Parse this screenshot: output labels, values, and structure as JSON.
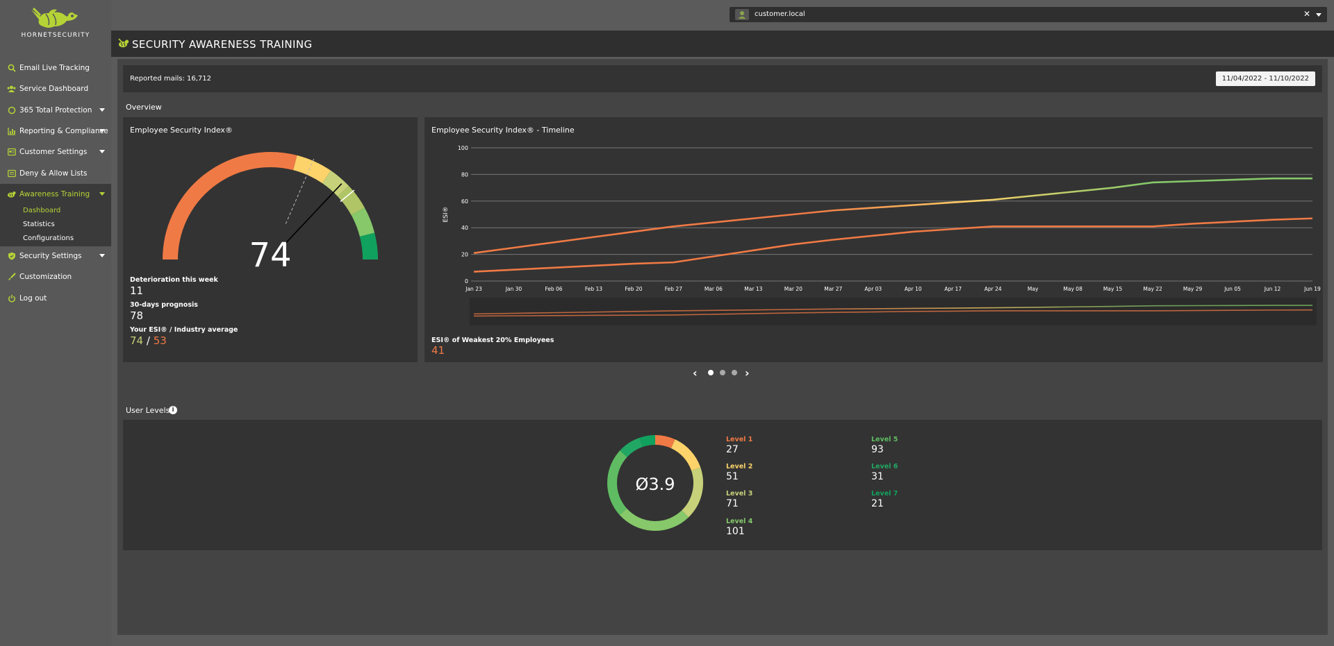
{
  "brand": {
    "logo_text": "HORNETSECURITY",
    "accent": "#b5d336"
  },
  "customer": {
    "name": "customer.local"
  },
  "header": {
    "title": "SECURITY AWARENESS TRAINING"
  },
  "sidebar": {
    "items": [
      {
        "label": "Email Live Tracking",
        "icon": "search-icon"
      },
      {
        "label": "Service Dashboard",
        "icon": "users-icon"
      },
      {
        "label": "365 Total Protection",
        "icon": "circle-icon"
      },
      {
        "label": "Reporting & Compliance",
        "icon": "chart-icon"
      },
      {
        "label": "Customer Settings",
        "icon": "settings-card-icon"
      },
      {
        "label": "Deny & Allow Lists",
        "icon": "list-icon"
      },
      {
        "label": "Awareness Training",
        "icon": "hornet-icon"
      },
      {
        "label": "Security Settings",
        "icon": "shield-icon"
      },
      {
        "label": "Customization",
        "icon": "brush-icon"
      },
      {
        "label": "Log out",
        "icon": "power-icon"
      }
    ],
    "sub_items": [
      {
        "label": "Dashboard"
      },
      {
        "label": "Statistics"
      },
      {
        "label": "Configurations"
      }
    ]
  },
  "summary": {
    "reported_mails": "Reported mails: 16,712",
    "date_range": "11/04/2022 - 11/10/2022"
  },
  "overview": {
    "label": "Overview",
    "esi": {
      "title": "Employee Security Index®",
      "score": "74",
      "gauge_value": 74,
      "gauge_prognosis": 78,
      "gauge_previous": 63,
      "deterioration_label": "Deterioration this week",
      "deterioration_value": "11",
      "prognosis_label": "30-days prognosis",
      "prognosis_value": "78",
      "compare_label": "Your ESI® / Industry average",
      "your_esi": "74",
      "separator": "/",
      "industry_avg": "53"
    },
    "timeline": {
      "title": "Employee Security Index® - Timeline",
      "weakest_label": "ESI® of Weakest 20% Employees",
      "weakest_value": "41"
    }
  },
  "carousel": {
    "prev": "‹",
    "next": "›",
    "pages": 3,
    "active": 0
  },
  "user_levels": {
    "label": "User Levels",
    "info": "i",
    "average": "Ø3.9",
    "levels": [
      {
        "label": "Level 1",
        "value": "27",
        "color": "#f07a45"
      },
      {
        "label": "Level 2",
        "value": "51",
        "color": "#fcd26a"
      },
      {
        "label": "Level 3",
        "value": "71",
        "color": "#c7d17a"
      },
      {
        "label": "Level 4",
        "value": "101",
        "color": "#86c86a"
      },
      {
        "label": "Level 5",
        "value": "93",
        "color": "#5fbc62"
      },
      {
        "label": "Level 6",
        "value": "31",
        "color": "#21a764"
      },
      {
        "label": "Level 7",
        "value": "21",
        "color": "#11a15e"
      }
    ]
  },
  "chart_data": [
    {
      "type": "line",
      "title": "Employee Security Index® - Timeline",
      "ylabel": "ESI®",
      "ylim": [
        0,
        100
      ],
      "yticks": [
        0,
        20,
        40,
        60,
        80,
        100
      ],
      "grid": true,
      "categories": [
        "Jan 23",
        "Jan 30",
        "Feb 06",
        "Feb 13",
        "Feb 20",
        "Feb 27",
        "Mar 06",
        "Mar 13",
        "Mar 20",
        "Mar 27",
        "Apr 03",
        "Apr 10",
        "Apr 17",
        "Apr 24",
        "May",
        "May 08",
        "May 15",
        "May 22",
        "May 29",
        "Jun 05",
        "Jun 12",
        "Jun 19"
      ],
      "series": [
        {
          "values": [
            21,
            25,
            29,
            33,
            37,
            41,
            44,
            47,
            50,
            53,
            55,
            57,
            59,
            61,
            64,
            67,
            70,
            74,
            75,
            76,
            77,
            77
          ],
          "colors": [
            "#f07a45",
            "#fcd26a",
            "#86c86a"
          ]
        },
        {
          "values": [
            7,
            8.5,
            10,
            11.5,
            13,
            14,
            18.5,
            23,
            27.5,
            31,
            34,
            37,
            39,
            41,
            41,
            41,
            41,
            41,
            43,
            44.5,
            46,
            47
          ],
          "color": "#f07a45"
        }
      ]
    },
    {
      "type": "pie",
      "title": "",
      "categories": [
        "Level 1",
        "Level 2",
        "Level 3",
        "Level 4",
        "Level 5",
        "Level 6",
        "Level 7"
      ],
      "values": [
        27,
        51,
        71,
        101,
        93,
        31,
        21
      ],
      "colors": [
        "#f07a45",
        "#fcd26a",
        "#c7d17a",
        "#86c86a",
        "#5fbc62",
        "#21a764",
        "#11a15e"
      ]
    }
  ]
}
